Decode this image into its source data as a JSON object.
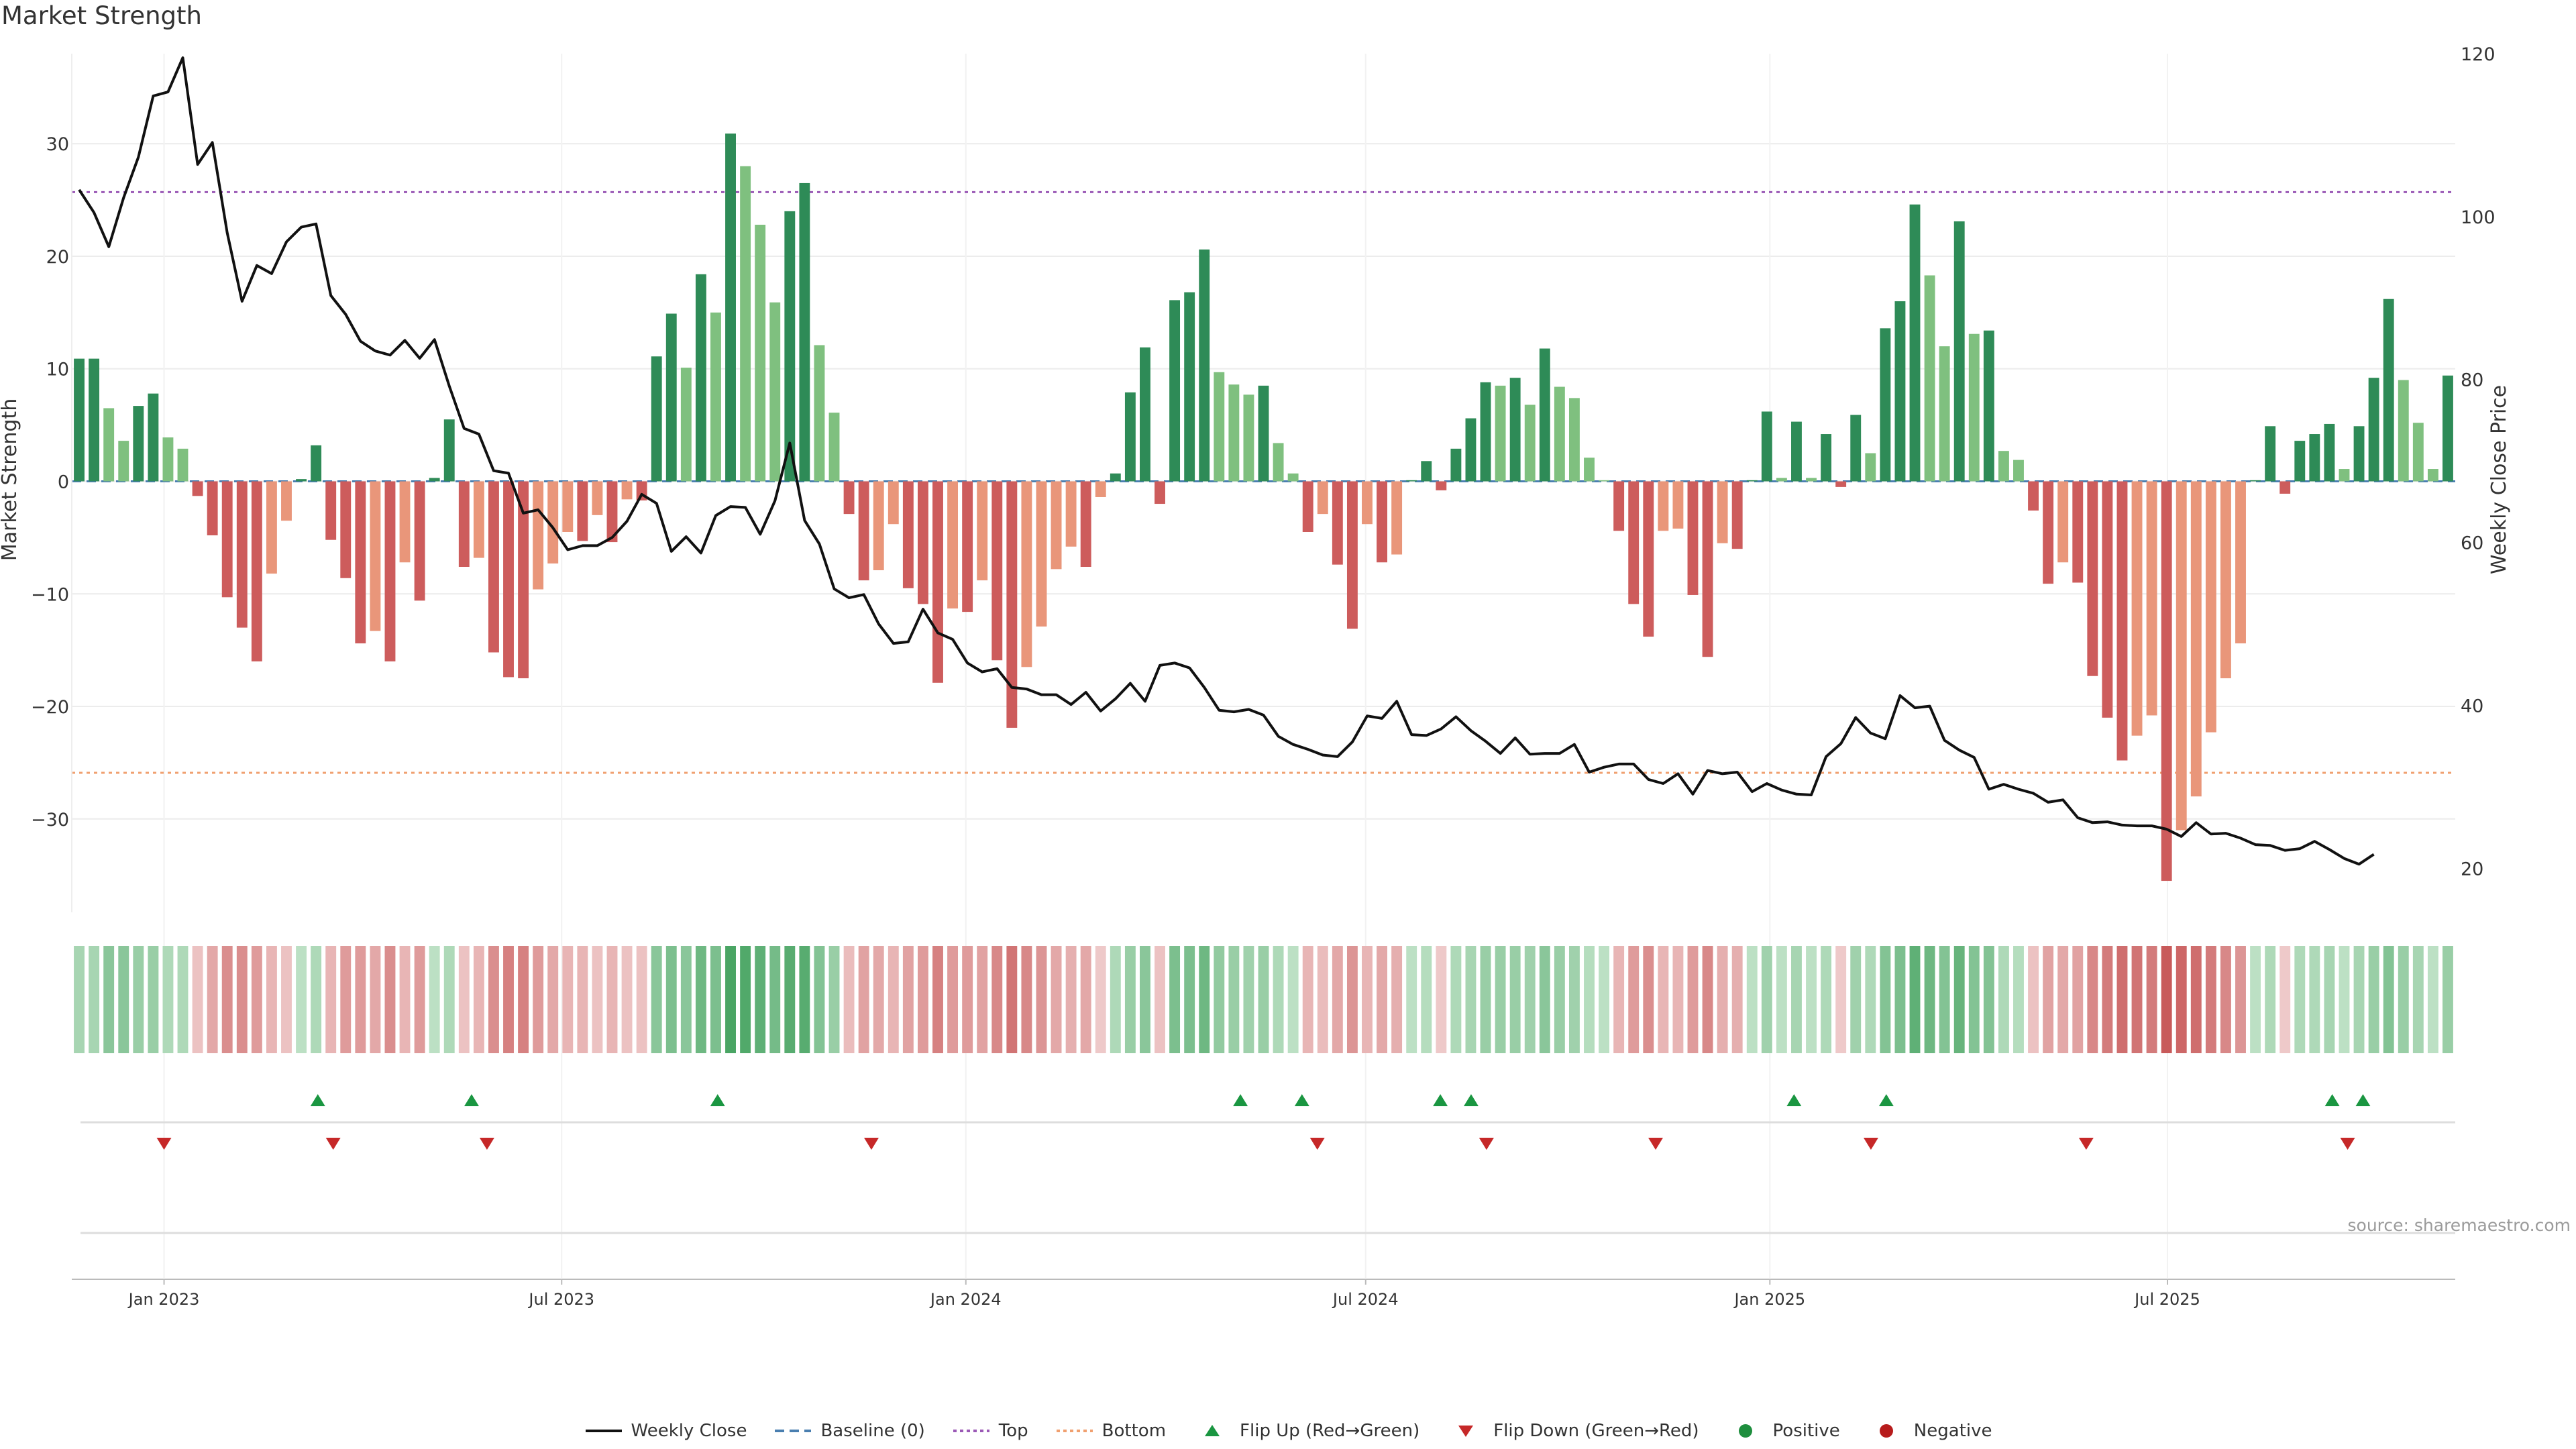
{
  "title": "Market Strength",
  "source": "source: sharemaestro.com",
  "legend": [
    {
      "label": "Weekly Close",
      "kind": "line-solid",
      "color": "#111111"
    },
    {
      "label": "Baseline (0)",
      "kind": "line-dash",
      "color": "#4a7fb0"
    },
    {
      "label": "Top",
      "kind": "line-dot",
      "color": "#9b59b6"
    },
    {
      "label": "Bottom",
      "kind": "line-dot",
      "color": "#f0a070"
    },
    {
      "label": "Flip Up (Red→Green)",
      "kind": "tri-up",
      "color": "#1a9641"
    },
    {
      "label": "Flip Down (Green→Red)",
      "kind": "tri-down",
      "color": "#c62828"
    },
    {
      "label": "Positive",
      "kind": "dot",
      "color": "#1e8e3e"
    },
    {
      "label": "Negative",
      "kind": "dot",
      "color": "#b71c1c"
    }
  ],
  "colors": {
    "pos_strong": "#2e8b57",
    "pos_weak": "#7fc07f",
    "neg_strong": "#cd5c5c",
    "neg_weak": "#e9967a",
    "price_line": "#111111",
    "top_line": "#9b59b6",
    "bottom_line": "#f0a070",
    "flip_up": "#1a9641",
    "flip_down": "#c62828"
  },
  "chart_data": {
    "type": "bar",
    "x_start": "2022-11-20",
    "x_end": "2025-11-09",
    "x_ticks": [
      {
        "label": "Jan 2023",
        "date": "2023-01-01"
      },
      {
        "label": "Jul 2023",
        "date": "2023-07-01"
      },
      {
        "label": "Jan 2024",
        "date": "2024-01-01"
      },
      {
        "label": "Jul 2024",
        "date": "2024-07-01"
      },
      {
        "label": "Jan 2025",
        "date": "2025-01-01"
      },
      {
        "label": "Jul 2025",
        "date": "2025-07-01"
      }
    ],
    "y_left": {
      "label": "Market Strength",
      "ylim": [
        -38,
        38
      ],
      "ticks": [
        30,
        20,
        10,
        0,
        -10,
        -20,
        -30
      ]
    },
    "y_right": {
      "label": "Weekly Close Price",
      "ylim": [
        15,
        120
      ],
      "ticks": [
        120,
        100,
        80,
        60,
        40,
        20
      ]
    },
    "top_level": 25.7,
    "bottom_level": -25.9,
    "baseline": 0,
    "strength": [
      10.9,
      10.9,
      6.5,
      3.6,
      6.7,
      7.8,
      3.9,
      2.9,
      -1.3,
      -4.8,
      -10.3,
      -13.0,
      -16.0,
      -8.2,
      -3.5,
      0.2,
      3.2,
      -5.2,
      -8.6,
      -14.4,
      -13.3,
      -16.0,
      -7.2,
      -10.6,
      0.3,
      5.5,
      -7.6,
      -6.8,
      -15.2,
      -17.4,
      -17.5,
      -9.6,
      -7.3,
      -4.5,
      -5.3,
      -3.0,
      -5.4,
      -1.6,
      -1.7,
      11.1,
      14.9,
      10.1,
      18.4,
      15.0,
      30.9,
      28.0,
      22.8,
      15.9,
      24.0,
      26.5,
      12.1,
      6.1,
      -2.9,
      -8.8,
      -7.9,
      -3.8,
      -9.5,
      -10.9,
      -17.9,
      -11.3,
      -11.6,
      -8.8,
      -15.9,
      -21.9,
      -16.5,
      -12.9,
      -7.8,
      -5.8,
      -7.6,
      -1.4,
      0.7,
      7.9,
      11.9,
      -2.0,
      16.1,
      16.8,
      20.6,
      9.7,
      8.6,
      7.7,
      8.5,
      3.4,
      0.7,
      -4.5,
      -2.9,
      -7.4,
      -13.1,
      -3.8,
      -7.2,
      -6.5,
      0.1,
      1.8,
      -0.8,
      2.9,
      5.6,
      8.8,
      8.5,
      9.2,
      6.8,
      11.8,
      8.4,
      7.4,
      2.1,
      0.1,
      -4.4,
      -10.9,
      -13.8,
      -4.4,
      -4.2,
      -10.1,
      -15.6,
      -5.5,
      -6.0,
      0.1,
      6.2,
      0.3,
      5.3,
      0.3,
      4.2,
      -0.5,
      5.9,
      2.5,
      13.6,
      16.0,
      24.6,
      18.3,
      12.0,
      23.1,
      13.1,
      13.4,
      2.7,
      1.9,
      -2.6,
      -9.1,
      -7.2,
      -9.0,
      -17.3,
      -21.0,
      -24.8,
      -22.6,
      -20.8,
      -35.5,
      -31.0,
      -28.0,
      -22.3,
      -17.5,
      -14.4,
      0.1,
      4.9,
      -1.1,
      3.6,
      4.2,
      5.1,
      1.1,
      4.9,
      9.2,
      16.2,
      9.0,
      5.2,
      1.1,
      9.4
    ],
    "weekly_close": [
      103.3,
      100.5,
      96.3,
      102.3,
      107.3,
      114.8,
      115.3,
      119.5,
      106.4,
      109.1,
      98.0,
      89.6,
      94.0,
      93.0,
      96.9,
      98.7,
      99.1,
      90.3,
      88.0,
      84.7,
      83.5,
      83.0,
      84.8,
      82.6,
      84.9,
      79.2,
      74.0,
      73.3,
      68.8,
      68.5,
      63.6,
      64.0,
      61.8,
      59.1,
      59.6,
      59.6,
      60.6,
      62.6,
      65.9,
      64.8,
      58.9,
      60.7,
      58.7,
      63.3,
      64.4,
      64.3,
      61.0,
      65.1,
      72.2,
      62.7,
      59.8,
      54.3,
      53.2,
      53.6,
      50.0,
      47.6,
      47.8,
      51.8,
      48.9,
      48.1,
      45.2,
      44.1,
      44.5,
      42.2,
      42.0,
      41.3,
      41.3,
      40.1,
      41.6,
      39.3,
      40.8,
      42.7,
      40.5,
      44.9,
      45.2,
      44.6,
      42.2,
      39.4,
      39.2,
      39.5,
      38.8,
      36.2,
      35.2,
      34.6,
      33.9,
      33.7,
      35.5,
      38.7,
      38.4,
      40.5,
      36.4,
      36.3,
      37.1,
      38.6,
      36.9,
      35.6,
      34.1,
      36.0,
      34.0,
      34.1,
      34.1,
      35.2,
      31.8,
      32.4,
      32.8,
      32.8,
      30.9,
      30.4,
      31.6,
      29.1,
      32.0,
      31.6,
      31.8,
      29.4,
      30.4,
      29.6,
      29.1,
      29.0,
      33.7,
      35.3,
      38.5,
      36.6,
      35.9,
      41.2,
      39.7,
      39.9,
      35.7,
      34.5,
      33.6,
      29.7,
      30.3,
      29.7,
      29.2,
      28.1,
      28.4,
      26.2,
      25.6,
      25.7,
      25.3,
      25.2,
      25.2,
      24.8,
      23.9,
      25.6,
      24.2,
      24.3,
      23.7,
      22.9,
      22.8,
      22.2,
      22.4,
      23.3,
      22.3,
      21.2,
      20.5,
      21.7
    ],
    "flip_up": [
      "2023-03-12",
      "2023-05-21",
      "2023-09-10",
      "2024-05-05",
      "2024-06-02",
      "2024-08-04",
      "2024-08-18",
      "2025-01-12",
      "2025-02-23",
      "2025-09-14",
      "2025-09-28"
    ],
    "flip_down": [
      "2023-01-01",
      "2023-03-19",
      "2023-05-28",
      "2023-11-19",
      "2024-06-09",
      "2024-08-25",
      "2024-08-25",
      "2024-11-10",
      "2025-02-16",
      "2025-05-25",
      "2025-09-21"
    ],
    "heat_levels": [
      0.35,
      0.35,
      0.55,
      0.55,
      0.45,
      0.45,
      0.3,
      0.3,
      -0.2,
      -0.4,
      -0.6,
      -0.6,
      -0.5,
      -0.3,
      -0.2,
      0.2,
      0.3,
      -0.3,
      -0.5,
      -0.5,
      -0.4,
      -0.6,
      -0.3,
      -0.5,
      0.2,
      0.3,
      -0.2,
      -0.3,
      -0.6,
      -0.7,
      -0.7,
      -0.5,
      -0.4,
      -0.3,
      -0.3,
      -0.2,
      -0.3,
      -0.2,
      -0.2,
      0.55,
      0.65,
      0.55,
      0.75,
      0.65,
      1.0,
      0.95,
      0.85,
      0.7,
      0.9,
      0.9,
      0.6,
      0.45,
      -0.25,
      -0.45,
      -0.4,
      -0.3,
      -0.45,
      -0.5,
      -0.7,
      -0.5,
      -0.5,
      -0.45,
      -0.65,
      -0.8,
      -0.65,
      -0.55,
      -0.4,
      -0.35,
      -0.4,
      -0.15,
      0.3,
      0.45,
      0.55,
      -0.2,
      0.65,
      0.65,
      0.75,
      0.5,
      0.45,
      0.4,
      0.45,
      0.3,
      0.2,
      -0.3,
      -0.25,
      -0.4,
      -0.55,
      -0.3,
      -0.4,
      -0.35,
      0.2,
      0.25,
      -0.15,
      0.3,
      0.35,
      0.45,
      0.45,
      0.45,
      0.4,
      0.55,
      0.45,
      0.4,
      0.25,
      0.2,
      -0.3,
      -0.5,
      -0.6,
      -0.3,
      -0.3,
      -0.5,
      -0.65,
      -0.35,
      -0.35,
      0.2,
      0.4,
      0.2,
      0.35,
      0.2,
      0.3,
      -0.15,
      0.4,
      0.3,
      0.6,
      0.65,
      0.85,
      0.75,
      0.6,
      0.8,
      0.6,
      0.6,
      0.3,
      0.25,
      -0.2,
      -0.45,
      -0.4,
      -0.45,
      -0.65,
      -0.75,
      -0.85,
      -0.8,
      -0.75,
      -1.0,
      -0.9,
      -0.85,
      -0.75,
      -0.65,
      -0.55,
      0.2,
      0.3,
      -0.15,
      0.3,
      0.3,
      0.35,
      0.2,
      0.35,
      0.45,
      0.6,
      0.45,
      0.35,
      0.2,
      0.45
    ]
  }
}
